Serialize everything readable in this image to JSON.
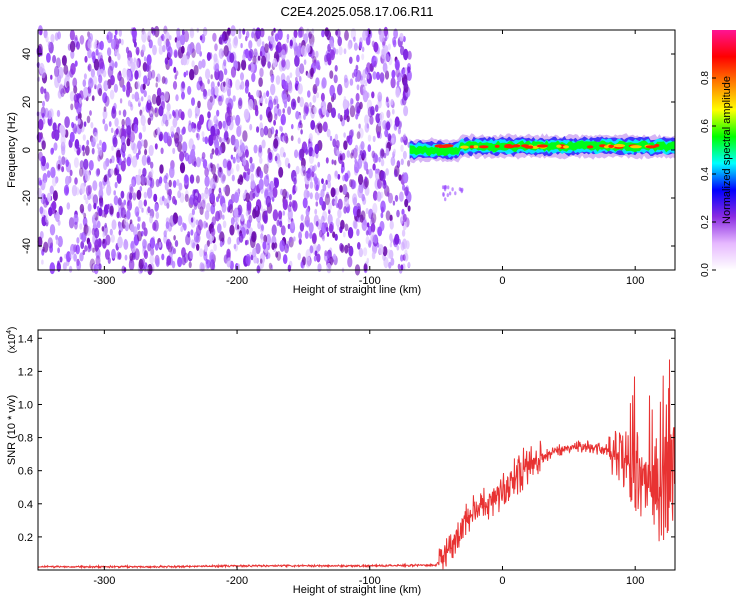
{
  "title": "C2E4.2025.058.17.06.R11",
  "chart_data": [
    {
      "type": "heatmap",
      "xlabel": "Height of straight line (km)",
      "ylabel": "Frequency (Hz)",
      "xlim": [
        -350,
        130
      ],
      "ylim": [
        -50,
        50
      ],
      "xticks": [
        -300,
        -200,
        -100,
        0,
        100
      ],
      "yticks": [
        -40,
        -20,
        0,
        20,
        40
      ],
      "noise_region_x": [
        -350,
        -70
      ],
      "signal_band_center_hz": 1.5,
      "colorbar": {
        "label": "Normalized spectral amplitude",
        "range": [
          0,
          1
        ],
        "ticks": [
          0.0,
          0.2,
          0.4,
          0.6,
          0.8
        ],
        "colors": [
          "#ffffff",
          "#e6b8ff",
          "#8a2be2",
          "#0000ff",
          "#00ffff",
          "#00ff00",
          "#ffff00",
          "#ff8000",
          "#ff0000",
          "#ff1493"
        ]
      }
    },
    {
      "type": "line",
      "xlabel": "Height of straight line (km)",
      "ylabel": "SNR (10 * v/v)",
      "y_multiplier": "(x10",
      "y_multiplier_exp": "4",
      "y_multiplier_close": ")",
      "xlim": [
        -350,
        130
      ],
      "ylim": [
        0,
        1.45
      ],
      "xticks": [
        -300,
        -200,
        -100,
        0,
        100
      ],
      "yticks": [
        "0.2",
        "0.4",
        "0.6",
        "0.8",
        "1.0",
        "1.2",
        "1.4"
      ],
      "series": [
        {
          "color": "#e83232",
          "x": [
            -350,
            -300,
            -250,
            -200,
            -150,
            -100,
            -50,
            -40,
            -30,
            -20,
            -10,
            0,
            10,
            20,
            30,
            40,
            50,
            60,
            70,
            80,
            90,
            100,
            110,
            120,
            130
          ],
          "y": [
            0.02,
            0.02,
            0.02,
            0.025,
            0.025,
            0.025,
            0.03,
            0.12,
            0.28,
            0.37,
            0.42,
            0.48,
            0.57,
            0.64,
            0.68,
            0.72,
            0.74,
            0.75,
            0.74,
            0.72,
            0.66,
            0.6,
            0.55,
            0.5,
            0.5
          ]
        }
      ]
    }
  ]
}
